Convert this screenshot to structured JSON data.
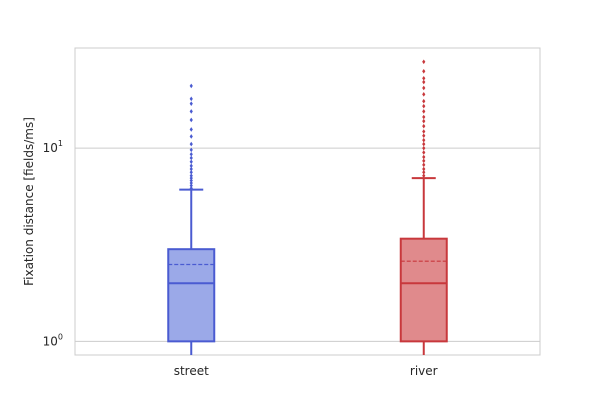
{
  "chart_data": {
    "type": "box",
    "title": "",
    "xlabel": "",
    "ylabel": "Fixation distance [fields/ms]",
    "yscale": "log",
    "ylim": [
      0.85,
      33
    ],
    "yticks": [
      {
        "value": 1,
        "label": "10",
        "exp": "0"
      },
      {
        "value": 10,
        "label": "10",
        "exp": "1"
      }
    ],
    "grid": "horizontal",
    "legend": "none",
    "categories": [
      "street",
      "river"
    ],
    "series": [
      {
        "category": "street",
        "color": "#4a5bd1",
        "fill": "#9ba9e8",
        "whisker_low": 0.85,
        "q1": 1.0,
        "median": 2.0,
        "mean": 2.5,
        "q3": 3.0,
        "whisker_high": 6.1,
        "outliers": [
          6.2,
          6.4,
          6.6,
          6.8,
          7.0,
          7.2,
          7.5,
          7.8,
          8.1,
          8.5,
          8.9,
          9.3,
          9.8,
          10.5,
          11.5,
          12.5,
          14.0,
          15.5,
          17.0,
          18.0,
          21.0
        ]
      },
      {
        "category": "river",
        "color": "#c8383c",
        "fill": "#e08a8c",
        "whisker_low": 0.85,
        "q1": 1.0,
        "median": 2.0,
        "mean": 2.6,
        "q3": 3.4,
        "whisker_high": 7.0,
        "outliers": [
          7.2,
          7.5,
          7.8,
          8.2,
          8.6,
          9.0,
          9.5,
          10.0,
          10.5,
          11.0,
          11.6,
          12.2,
          13.0,
          13.8,
          14.5,
          15.5,
          16.5,
          17.5,
          19.0,
          20.5,
          22.0,
          23.0,
          25.0,
          28.0
        ]
      }
    ]
  }
}
